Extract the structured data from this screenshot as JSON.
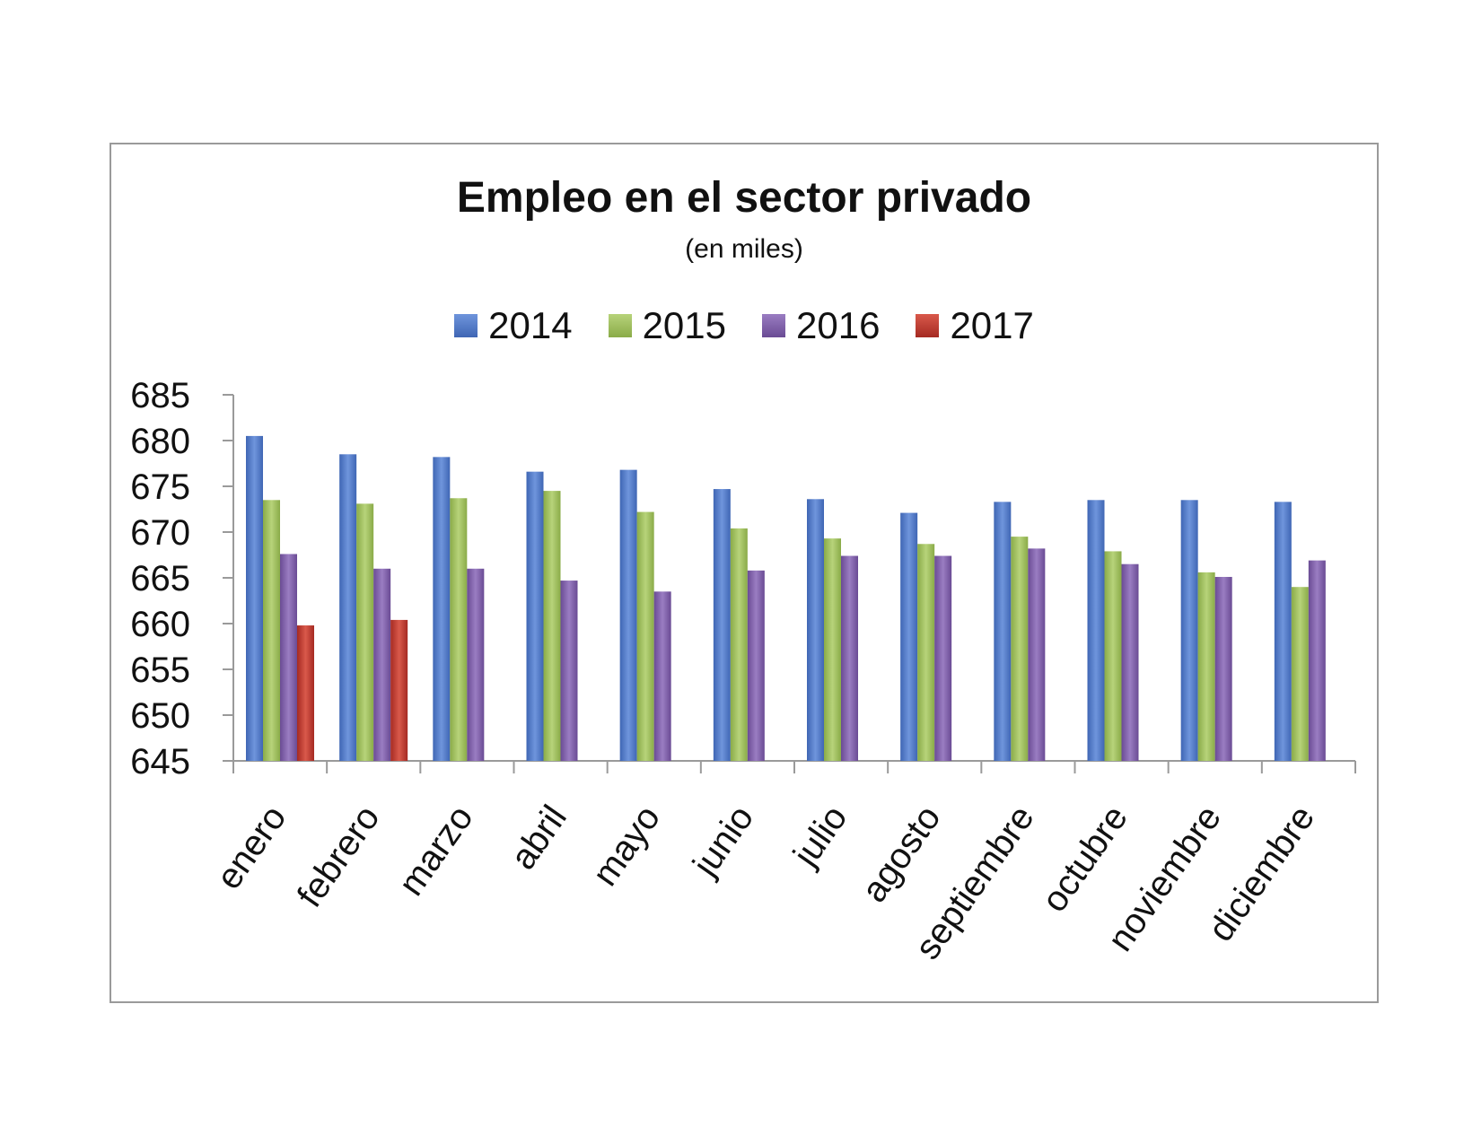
{
  "chart_data": {
    "type": "bar",
    "title": "Empleo en el sector privado",
    "subtitle": "(en miles)",
    "xlabel": "",
    "ylabel": "",
    "ylim": [
      645,
      685
    ],
    "yticks": [
      645,
      650,
      655,
      660,
      665,
      670,
      675,
      680,
      685
    ],
    "grid": false,
    "legend_position": "top",
    "categories": [
      "enero",
      "febrero",
      "marzo",
      "abril",
      "mayo",
      "junio",
      "julio",
      "agosto",
      "septiembre",
      "octubre",
      "noviembre",
      "diciembre"
    ],
    "series": [
      {
        "name": "2014",
        "color": "#4a74c4",
        "values": [
          680.5,
          678.5,
          678.2,
          676.6,
          676.8,
          674.7,
          673.6,
          672.1,
          673.3,
          673.5,
          673.5,
          673.3
        ]
      },
      {
        "name": "2015",
        "color": "#9bbb59",
        "values": [
          673.5,
          673.1,
          673.7,
          674.5,
          672.2,
          670.4,
          669.3,
          668.7,
          669.5,
          667.9,
          665.6,
          664.0
        ]
      },
      {
        "name": "2016",
        "color": "#7d5ba6",
        "values": [
          667.6,
          666.0,
          666.0,
          664.7,
          663.5,
          665.8,
          667.4,
          667.4,
          668.2,
          666.5,
          665.1,
          666.9
        ]
      },
      {
        "name": "2017",
        "color": "#c0392b",
        "values": [
          659.8,
          660.4,
          null,
          null,
          null,
          null,
          null,
          null,
          null,
          null,
          null,
          null
        ]
      }
    ]
  }
}
